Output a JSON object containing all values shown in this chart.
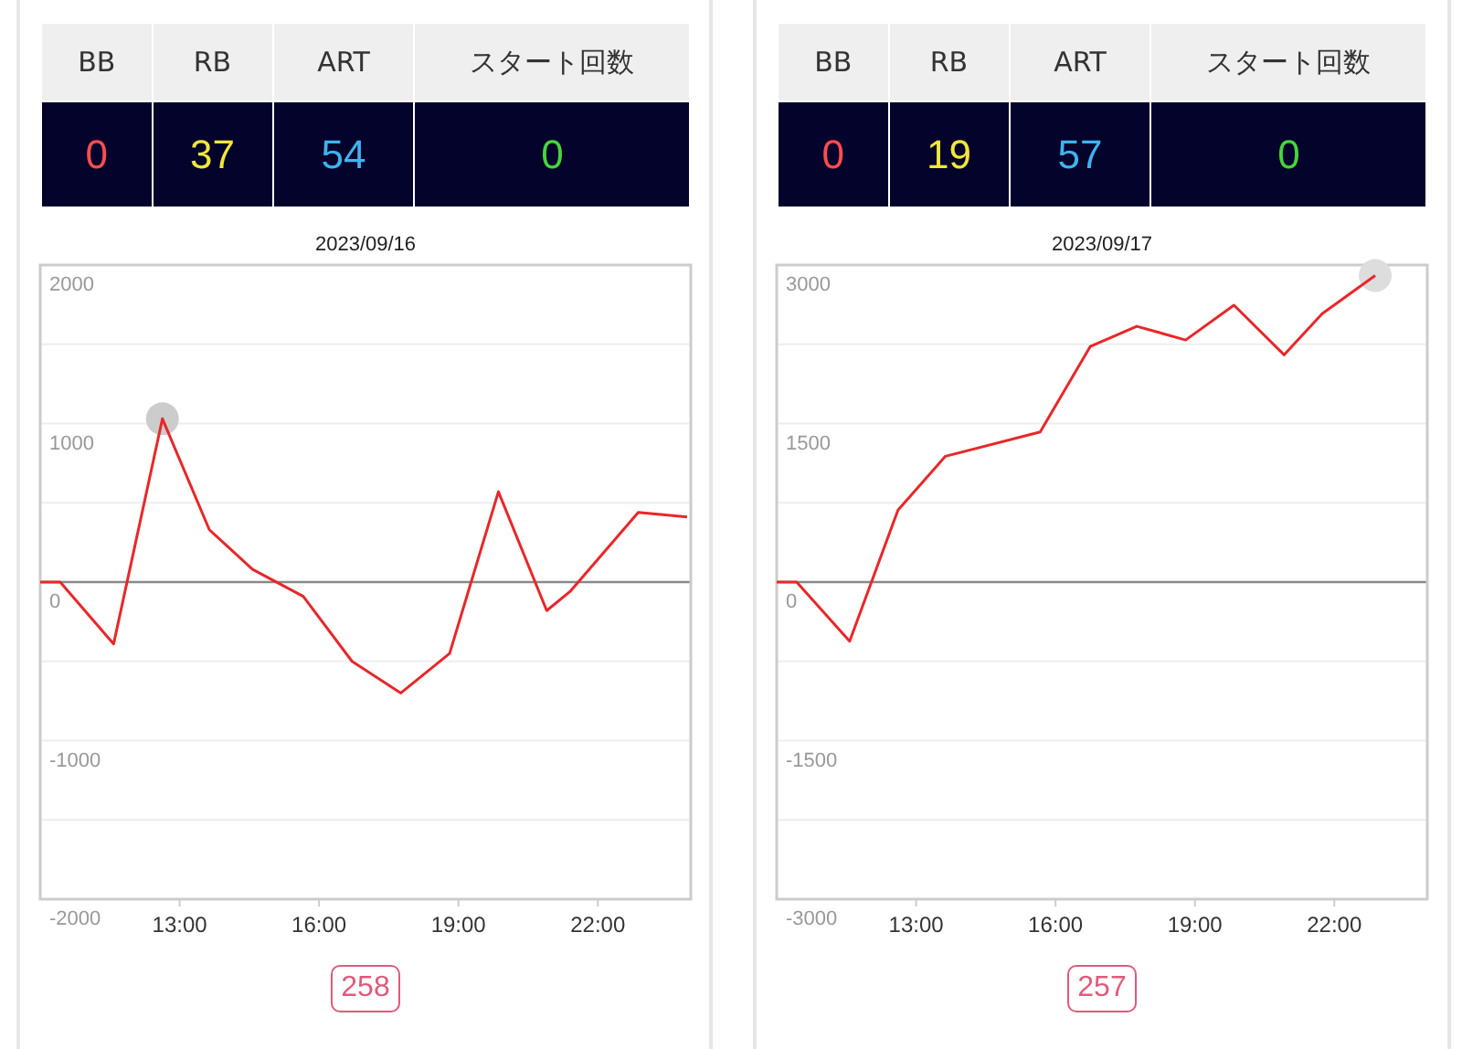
{
  "chart_data": [
    {
      "type": "other",
      "categories": [
        "BB",
        "RB",
        "ART",
        "スタート回数"
      ],
      "values": [
        0,
        37,
        54,
        0
      ],
      "data_labels": true
    },
    {
      "type": "line",
      "title": "2023/09/16",
      "xlim": [
        10,
        24
      ],
      "ylim": [
        -2000,
        2000
      ],
      "xticks": [
        {
          "value": 13,
          "label": "13:00"
        },
        {
          "value": 16,
          "label": "16:00"
        },
        {
          "value": 19,
          "label": "19:00"
        },
        {
          "value": 22,
          "label": "22:00"
        }
      ],
      "yticks": [
        -2000,
        {
          "value": -1500,
          "label": null
        },
        -1000,
        {
          "value": -500,
          "label": null
        },
        0,
        {
          "value": 500,
          "label": null
        },
        1000,
        {
          "value": 1500,
          "label": null
        },
        2000
      ],
      "grid": "y",
      "ref_lines": [
        {
          "axis": "y",
          "value": 0,
          "color": "#888888"
        }
      ],
      "annotations": [
        "258"
      ],
      "series": [
        {
          "type": "scatter",
          "color": "#cccccc",
          "x": [
            12.63
          ],
          "values": [
            1030
          ]
        },
        {
          "type": "line",
          "color": "#e8272a",
          "x": [
            10,
            10.43,
            11.58,
            12.63,
            13.64,
            14.57,
            15.66,
            16.71,
            17.76,
            18.81,
            19.86,
            20.9,
            21.4,
            22.87,
            23.92
          ],
          "values": [
            0,
            0,
            -390,
            1030,
            330,
            80,
            -90,
            -500,
            -700,
            -450,
            570,
            -180,
            -60,
            440,
            410
          ]
        }
      ]
    },
    {
      "type": "other",
      "categories": [
        "BB",
        "RB",
        "ART",
        "スタート回数"
      ],
      "values": [
        0,
        19,
        57,
        0
      ],
      "data_labels": true
    },
    {
      "type": "line",
      "title": "2023/09/17",
      "xlim": [
        10,
        24
      ],
      "ylim": [
        -3000,
        3000
      ],
      "xticks": [
        {
          "value": 13,
          "label": "13:00"
        },
        {
          "value": 16,
          "label": "16:00"
        },
        {
          "value": 19,
          "label": "19:00"
        },
        {
          "value": 22,
          "label": "22:00"
        }
      ],
      "yticks": [
        -3000,
        {
          "value": -2250,
          "label": null
        },
        -1500,
        {
          "value": -750,
          "label": null
        },
        0,
        {
          "value": 750,
          "label": null
        },
        1500,
        {
          "value": 2250,
          "label": null
        },
        3000
      ],
      "grid": "y",
      "ref_lines": [
        {
          "axis": "y",
          "value": 0,
          "color": "#888888"
        }
      ],
      "annotations": [
        "257"
      ],
      "series": [
        {
          "type": "scatter",
          "color": "#dddddd",
          "x": [
            22.88
          ],
          "values": [
            2900
          ]
        },
        {
          "type": "line",
          "color": "#e8272a",
          "x": [
            10,
            10.43,
            11.57,
            12.61,
            13.63,
            15.67,
            16.75,
            17.75,
            18.8,
            19.84,
            20.92,
            21.74,
            22.88
          ],
          "values": [
            0,
            0,
            -560,
            680,
            1190,
            1420,
            2230,
            2420,
            2290,
            2620,
            2150,
            2540,
            2900
          ]
        }
      ]
    }
  ]
}
